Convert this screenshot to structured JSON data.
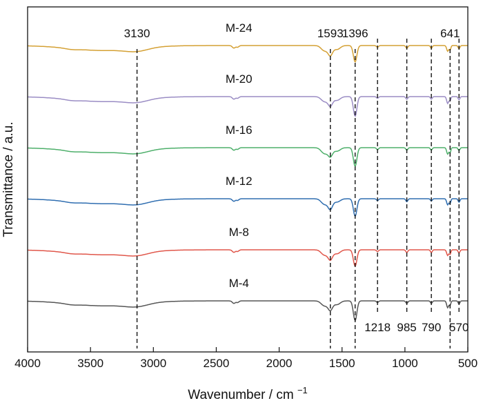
{
  "chart_data": {
    "type": "line",
    "xlabel": "Wavenumber / cm",
    "xlabel_superscript": "−1",
    "ylabel": "Transmittance / a.u.",
    "xlim": [
      4000,
      500
    ],
    "x_reversed": true,
    "x_ticks": [
      4000,
      3500,
      3000,
      2500,
      2000,
      1500,
      1000,
      500
    ],
    "y_ticks": false,
    "grid": false,
    "series": [
      {
        "name": "M-24",
        "color": "#D4A033",
        "offset": 5
      },
      {
        "name": "M-20",
        "color": "#9A8CC4",
        "offset": 4
      },
      {
        "name": "M-16",
        "color": "#4DAF6A",
        "offset": 3
      },
      {
        "name": "M-12",
        "color": "#2E6DB0",
        "offset": 2
      },
      {
        "name": "M-8",
        "color": "#E0564A",
        "offset": 1
      },
      {
        "name": "M-4",
        "color": "#555555",
        "offset": 0
      }
    ],
    "peaks": [
      {
        "x": 3130,
        "label": "3130",
        "label_pos": "top"
      },
      {
        "x": 1593,
        "label": "1593",
        "label_pos": "top"
      },
      {
        "x": 1396,
        "label": "1396",
        "label_pos": "top"
      },
      {
        "x": 1218,
        "label": "1218",
        "label_pos": "bottom"
      },
      {
        "x": 985,
        "label": "985",
        "label_pos": "bottom"
      },
      {
        "x": 790,
        "label": "790",
        "label_pos": "bottom"
      },
      {
        "x": 641,
        "label": "641",
        "label_pos": "top"
      },
      {
        "x": 570,
        "label": "570",
        "label_pos": "bottom"
      }
    ],
    "spectrum_profile": {
      "baseline_bands": [
        {
          "center": 3400,
          "width": 260,
          "depth": 0.55
        },
        {
          "center": 3130,
          "width": 90,
          "depth": 0.35
        },
        {
          "center": 3650,
          "width": 50,
          "depth": 0.1
        },
        {
          "center": 2360,
          "width": 12,
          "depth": 0.28
        },
        {
          "center": 2330,
          "width": 10,
          "depth": 0.18
        },
        {
          "center": 1640,
          "width": 25,
          "depth": 0.6
        },
        {
          "center": 1593,
          "width": 18,
          "depth": 1.0
        },
        {
          "center": 1540,
          "width": 25,
          "depth": 0.4
        },
        {
          "center": 1396,
          "width": 14,
          "depth": 2.0
        },
        {
          "center": 1218,
          "width": 8,
          "depth": 0.2
        },
        {
          "center": 985,
          "width": 8,
          "depth": 0.3
        },
        {
          "center": 790,
          "width": 7,
          "depth": 0.28
        },
        {
          "center": 660,
          "width": 8,
          "depth": 0.7
        },
        {
          "center": 641,
          "width": 6,
          "depth": 0.5
        },
        {
          "center": 570,
          "width": 7,
          "depth": 0.35
        }
      ]
    }
  }
}
